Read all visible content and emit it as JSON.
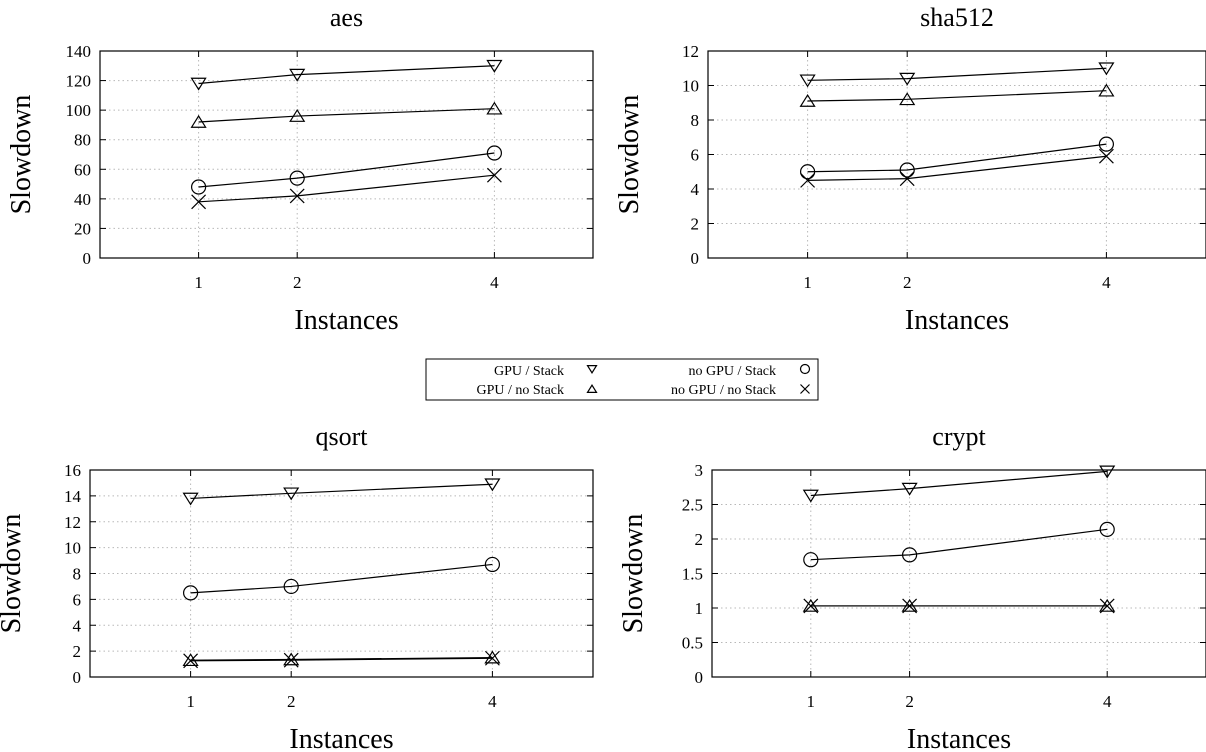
{
  "chart_data": [
    {
      "type": "line",
      "title": "aes",
      "xlabel": "Instances",
      "ylabel": "Slowdown",
      "x": [
        1,
        2,
        4
      ],
      "xticks": [
        "1",
        "2",
        "4"
      ],
      "xlim": [
        0,
        5
      ],
      "ylim": [
        0,
        140
      ],
      "yticks": [
        "0",
        "20",
        "40",
        "60",
        "80",
        "100",
        "120",
        "140"
      ],
      "grid": true,
      "series": [
        {
          "name": "GPU / Stack",
          "marker": "triangle-down",
          "values": [
            118,
            124,
            130
          ]
        },
        {
          "name": "GPU / no Stack",
          "marker": "triangle-up",
          "values": [
            92,
            96,
            101
          ]
        },
        {
          "name": "no GPU / Stack",
          "marker": "circle",
          "values": [
            48,
            54,
            71
          ]
        },
        {
          "name": "no GPU / no Stack",
          "marker": "cross",
          "values": [
            38,
            42,
            56
          ]
        }
      ]
    },
    {
      "type": "line",
      "title": "sha512",
      "xlabel": "Instances",
      "ylabel": "Slowdown",
      "x": [
        1,
        2,
        4
      ],
      "xticks": [
        "1",
        "2",
        "4"
      ],
      "xlim": [
        0,
        5
      ],
      "ylim": [
        0,
        12
      ],
      "yticks": [
        "0",
        "2",
        "4",
        "6",
        "8",
        "10",
        "12"
      ],
      "grid": true,
      "series": [
        {
          "name": "GPU / Stack",
          "marker": "triangle-down",
          "values": [
            10.3,
            10.4,
            11.0
          ]
        },
        {
          "name": "GPU / no Stack",
          "marker": "triangle-up",
          "values": [
            9.1,
            9.2,
            9.7
          ]
        },
        {
          "name": "no GPU / Stack",
          "marker": "circle",
          "values": [
            5.0,
            5.1,
            6.6
          ]
        },
        {
          "name": "no GPU / no Stack",
          "marker": "cross",
          "values": [
            4.5,
            4.6,
            5.9
          ]
        }
      ]
    },
    {
      "type": "line",
      "title": "qsort",
      "xlabel": "Instances",
      "ylabel": "Slowdown",
      "x": [
        1,
        2,
        4
      ],
      "xticks": [
        "1",
        "2",
        "4"
      ],
      "xlim": [
        0,
        5
      ],
      "ylim": [
        0,
        16
      ],
      "yticks": [
        "0",
        "2",
        "4",
        "6",
        "8",
        "10",
        "12",
        "14",
        "16"
      ],
      "grid": true,
      "series": [
        {
          "name": "GPU / Stack",
          "marker": "triangle-down",
          "values": [
            13.8,
            14.2,
            14.9
          ]
        },
        {
          "name": "GPU / no Stack",
          "marker": "triangle-up",
          "values": [
            1.3,
            1.35,
            1.5
          ]
        },
        {
          "name": "no GPU / Stack",
          "marker": "circle",
          "values": [
            6.5,
            7.0,
            8.7
          ]
        },
        {
          "name": "no GPU / no Stack",
          "marker": "cross",
          "values": [
            1.25,
            1.3,
            1.45
          ]
        }
      ]
    },
    {
      "type": "line",
      "title": "crypt",
      "xlabel": "Instances",
      "ylabel": "Slowdown",
      "x": [
        1,
        2,
        4
      ],
      "xticks": [
        "1",
        "2",
        "4"
      ],
      "xlim": [
        0,
        5
      ],
      "ylim": [
        0,
        3
      ],
      "yticks": [
        "0",
        "0.5",
        "1",
        "1.5",
        "2",
        "2.5",
        "3"
      ],
      "grid": true,
      "series": [
        {
          "name": "GPU / Stack",
          "marker": "triangle-down",
          "values": [
            2.63,
            2.73,
            2.98
          ]
        },
        {
          "name": "GPU / no Stack",
          "marker": "triangle-up",
          "values": [
            1.03,
            1.03,
            1.03
          ]
        },
        {
          "name": "no GPU / Stack",
          "marker": "circle",
          "values": [
            1.7,
            1.77,
            2.14
          ]
        },
        {
          "name": "no GPU / no Stack",
          "marker": "cross",
          "values": [
            1.03,
            1.03,
            1.03
          ]
        }
      ]
    }
  ],
  "legend": {
    "entries": [
      {
        "label": "GPU / Stack",
        "marker": "triangle-down"
      },
      {
        "label": "no GPU / Stack",
        "marker": "circle"
      },
      {
        "label": "GPU / no Stack",
        "marker": "triangle-up"
      },
      {
        "label": "no GPU / no Stack",
        "marker": "cross"
      }
    ]
  }
}
